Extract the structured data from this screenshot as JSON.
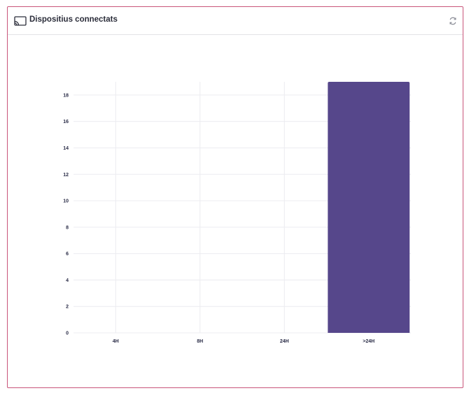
{
  "widget": {
    "title": "Dispositius connectats",
    "icon": "cast-icon",
    "refresh_icon": "refresh-icon"
  },
  "colors": {
    "border": "#c9557a",
    "bar": "#56478b",
    "grid": "#ececf0",
    "text": "#2b2d48"
  },
  "chart_data": {
    "type": "bar",
    "categories": [
      "4H",
      "8H",
      "24H",
      ">24H"
    ],
    "values": [
      0,
      0,
      0,
      19
    ],
    "ylim": [
      0,
      19
    ],
    "yticks": [
      0,
      2,
      4,
      6,
      8,
      10,
      12,
      14,
      16,
      18
    ],
    "grid": true,
    "title": "",
    "xlabel": "",
    "ylabel": ""
  }
}
